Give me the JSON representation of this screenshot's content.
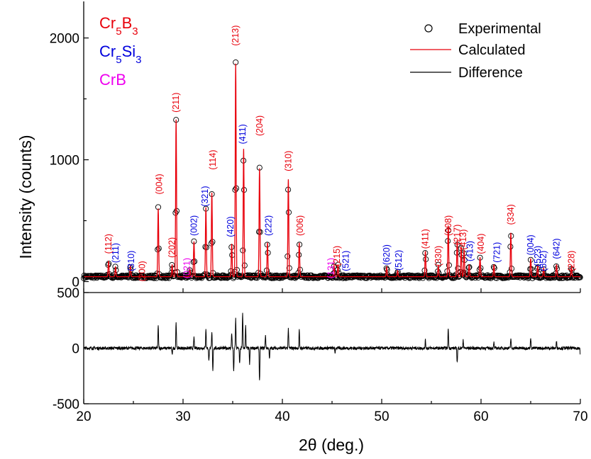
{
  "chart_data": {
    "type": "line",
    "xlabel": "2θ (deg.)",
    "xlim": [
      20,
      70
    ],
    "x_ticks": [
      "20",
      "30",
      "40",
      "50",
      "60",
      "70"
    ],
    "panels": {
      "top": {
        "ylabel": "Intensity (counts)",
        "ylim": [
          -90,
          2300
        ],
        "y_ticks": [
          "0",
          "1000",
          "2000"
        ]
      },
      "bottom": {
        "ylim": [
          -500,
          500
        ],
        "y_ticks": [
          "-500",
          "0",
          "500"
        ]
      }
    },
    "legend": {
      "placement": "top-right",
      "entries": [
        {
          "label": "Experimental",
          "marker": "open-circle",
          "color": "#000000"
        },
        {
          "label": "Calculated",
          "marker": "line",
          "color": "#e8000b"
        },
        {
          "label": "Difference",
          "marker": "line",
          "color": "#000000"
        }
      ]
    },
    "phases": [
      {
        "label_base": "Cr",
        "label_sub": "5",
        "label_base2": "B",
        "label_sub2": "3",
        "color": "#e8000b"
      },
      {
        "label_base": "Cr",
        "label_sub": "5",
        "label_base2": "Si",
        "label_sub2": "3",
        "color": "#0000dd"
      },
      {
        "label_base": "CrB",
        "label_sub": "",
        "label_base2": "",
        "label_sub2": "",
        "color": "#ee00ee"
      }
    ],
    "background": 40,
    "peaks": [
      {
        "x": 22.5,
        "y": 170
      },
      {
        "x": 23.2,
        "y": 120
      },
      {
        "x": 24.7,
        "y": 130
      },
      {
        "x": 27.5,
        "y": 600
      },
      {
        "x": 28.9,
        "y": 140
      },
      {
        "x": 29.3,
        "y": 1330
      },
      {
        "x": 30.7,
        "y": 100
      },
      {
        "x": 31.1,
        "y": 330
      },
      {
        "x": 32.3,
        "y": 610
      },
      {
        "x": 32.9,
        "y": 730
      },
      {
        "x": 34.9,
        "y": 310
      },
      {
        "x": 35.3,
        "y": 1790
      },
      {
        "x": 36.1,
        "y": 1090
      },
      {
        "x": 37.7,
        "y": 930
      },
      {
        "x": 38.5,
        "y": 320
      },
      {
        "x": 40.6,
        "y": 840
      },
      {
        "x": 41.7,
        "y": 320
      },
      {
        "x": 45.2,
        "y": 130
      },
      {
        "x": 45.6,
        "y": 140
      },
      {
        "x": 50.5,
        "y": 120
      },
      {
        "x": 51.6,
        "y": 90
      },
      {
        "x": 54.4,
        "y": 250
      },
      {
        "x": 55.7,
        "y": 130
      },
      {
        "x": 56.7,
        "y": 460
      },
      {
        "x": 57.6,
        "y": 340
      },
      {
        "x": 58.0,
        "y": 290
      },
      {
        "x": 58.3,
        "y": 260
      },
      {
        "x": 58.8,
        "y": 140
      },
      {
        "x": 59.9,
        "y": 200
      },
      {
        "x": 61.3,
        "y": 140
      },
      {
        "x": 63.0,
        "y": 400
      },
      {
        "x": 65.0,
        "y": 190
      },
      {
        "x": 65.7,
        "y": 130
      },
      {
        "x": 66.3,
        "y": 110
      },
      {
        "x": 67.6,
        "y": 140
      },
      {
        "x": 69.1,
        "y": 120
      }
    ],
    "difference_spikes": [
      {
        "x": 27.5,
        "y": 200
      },
      {
        "x": 29.3,
        "y": 240
      },
      {
        "x": 28.9,
        "y": -60
      },
      {
        "x": 31.1,
        "y": 100
      },
      {
        "x": 32.3,
        "y": 180
      },
      {
        "x": 32.6,
        "y": -120
      },
      {
        "x": 32.9,
        "y": 140
      },
      {
        "x": 33.0,
        "y": -200
      },
      {
        "x": 34.9,
        "y": 140
      },
      {
        "x": 35.3,
        "y": 260
      },
      {
        "x": 35.1,
        "y": -220
      },
      {
        "x": 35.7,
        "y": -140
      },
      {
        "x": 36.0,
        "y": 320
      },
      {
        "x": 36.3,
        "y": 200
      },
      {
        "x": 36.7,
        "y": -140
      },
      {
        "x": 37.7,
        "y": -300
      },
      {
        "x": 38.3,
        "y": 120
      },
      {
        "x": 38.7,
        "y": -100
      },
      {
        "x": 40.6,
        "y": 180
      },
      {
        "x": 41.7,
        "y": 160
      },
      {
        "x": 45.3,
        "y": -40
      },
      {
        "x": 54.4,
        "y": 70
      },
      {
        "x": 56.7,
        "y": 180
      },
      {
        "x": 57.6,
        "y": -130
      },
      {
        "x": 58.2,
        "y": 80
      },
      {
        "x": 61.3,
        "y": 50
      },
      {
        "x": 63.0,
        "y": 90
      },
      {
        "x": 65.0,
        "y": 100
      },
      {
        "x": 67.6,
        "y": 60
      },
      {
        "x": 70.0,
        "y": -60
      }
    ],
    "hkl_labels": [
      {
        "text": "(112)",
        "x": 22.5,
        "y": 310,
        "color": "#e8000b"
      },
      {
        "text": "(211)",
        "x": 23.2,
        "y": 235,
        "color": "#0000dd"
      },
      {
        "text": "(310)",
        "x": 24.8,
        "y": 170,
        "color": "#0000dd"
      },
      {
        "text": "(200)",
        "x": 25.9,
        "y": 85,
        "color": "#e8000b"
      },
      {
        "text": "(004)",
        "x": 27.6,
        "y": 800,
        "color": "#e8000b"
      },
      {
        "text": "(202)",
        "x": 28.9,
        "y": 280,
        "color": "#e8000b"
      },
      {
        "text": "(211)",
        "x": 29.3,
        "y": 1470,
        "color": "#e8000b"
      },
      {
        "text": "(021)",
        "x": 30.4,
        "y": 110,
        "color": "#ee00ee"
      },
      {
        "text": "(002)",
        "x": 31.1,
        "y": 460,
        "color": "#0000dd"
      },
      {
        "text": "(321)",
        "x": 32.2,
        "y": 700,
        "color": "#0000dd"
      },
      {
        "text": "(114)",
        "x": 33.0,
        "y": 1000,
        "color": "#e8000b"
      },
      {
        "text": "(420)",
        "x": 34.8,
        "y": 450,
        "color": "#0000dd"
      },
      {
        "text": "(213)",
        "x": 35.3,
        "y": 2020,
        "color": "#e8000b"
      },
      {
        "text": "(411)",
        "x": 36.0,
        "y": 1210,
        "color": "#0000dd"
      },
      {
        "text": "(204)",
        "x": 37.7,
        "y": 1280,
        "color": "#e8000b"
      },
      {
        "text": "(222)",
        "x": 38.6,
        "y": 460,
        "color": "#0000dd"
      },
      {
        "text": "(310)",
        "x": 40.6,
        "y": 990,
        "color": "#e8000b"
      },
      {
        "text": "(006)",
        "x": 41.8,
        "y": 460,
        "color": "#e8000b"
      },
      {
        "text": "(131)",
        "x": 44.9,
        "y": 110,
        "color": "#ee00ee"
      },
      {
        "text": "(215)",
        "x": 45.5,
        "y": 210,
        "color": "#e8000b"
      },
      {
        "text": "(521)",
        "x": 46.4,
        "y": 170,
        "color": "#0000dd"
      },
      {
        "text": "(620)",
        "x": 50.5,
        "y": 220,
        "color": "#0000dd"
      },
      {
        "text": "(512)",
        "x": 51.7,
        "y": 175,
        "color": "#0000dd"
      },
      {
        "text": "(411)",
        "x": 54.4,
        "y": 350,
        "color": "#e8000b"
      },
      {
        "text": "(330)",
        "x": 55.7,
        "y": 210,
        "color": "#e8000b"
      },
      {
        "text": "(008)",
        "x": 56.7,
        "y": 460,
        "color": "#e8000b"
      },
      {
        "text": "(217)",
        "x": 57.6,
        "y": 385,
        "color": "#e8000b"
      },
      {
        "text": "(413)",
        "x": 58.2,
        "y": 345,
        "color": "#e8000b"
      },
      {
        "text": "(413)",
        "x": 58.9,
        "y": 250,
        "color": "#0000dd"
      },
      {
        "text": "(404)",
        "x": 60.0,
        "y": 310,
        "color": "#e8000b"
      },
      {
        "text": "(721)",
        "x": 61.6,
        "y": 240,
        "color": "#0000dd"
      },
      {
        "text": "(334)",
        "x": 63.0,
        "y": 550,
        "color": "#e8000b"
      },
      {
        "text": "(004)",
        "x": 65.0,
        "y": 300,
        "color": "#0000dd"
      },
      {
        "text": "(523)",
        "x": 65.7,
        "y": 210,
        "color": "#0000dd"
      },
      {
        "text": "(552)",
        "x": 66.3,
        "y": 170,
        "color": "#0000dd"
      },
      {
        "text": "(642)",
        "x": 67.6,
        "y": 270,
        "color": "#0000dd"
      },
      {
        "text": "(228)",
        "x": 69.1,
        "y": 170,
        "color": "#e8000b"
      }
    ]
  }
}
